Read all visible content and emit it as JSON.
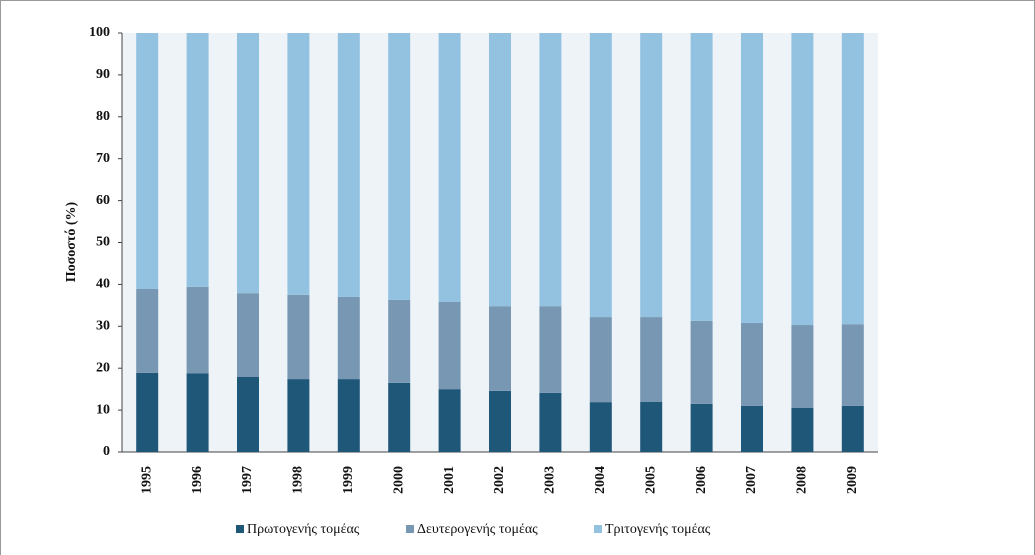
{
  "chart_data": {
    "type": "stacked_bar",
    "y_label": "Ποσοστό (%)",
    "categories": [
      "1995",
      "1996",
      "1997",
      "1998",
      "1999",
      "2000",
      "2001",
      "2002",
      "2003",
      "2004",
      "2005",
      "2006",
      "2007",
      "2008",
      "2009"
    ],
    "series": [
      {
        "name": "Πρωτογενής τομέας",
        "color": "#1f5779",
        "values": [
          18.9,
          18.8,
          17.9,
          17.4,
          17.4,
          16.5,
          15,
          14.6,
          14.1,
          11.9,
          12,
          11.5,
          11,
          10.5,
          11
        ]
      },
      {
        "name": "Δευτερογενής τομέας",
        "color": "#7897b3",
        "values": [
          20,
          20.6,
          20,
          20.1,
          19.6,
          19.8,
          20.8,
          20.2,
          20.7,
          20.3,
          20.2,
          19.8,
          19.8,
          19.8,
          19.5
        ]
      },
      {
        "name": "Τριτογενής τομέας",
        "color": "#93c2e1",
        "values": [
          61.1,
          60.6,
          62.1,
          62.5,
          63,
          63.7,
          64.2,
          65.2,
          65.2,
          67.8,
          67.8,
          68.7,
          69.2,
          69.7,
          69.5
        ]
      }
    ],
    "ylim": [
      0,
      100
    ],
    "yticks": [
      0,
      10,
      20,
      30,
      40,
      50,
      60,
      70,
      80,
      90,
      100
    ],
    "grid": false,
    "legend": "bottom"
  }
}
